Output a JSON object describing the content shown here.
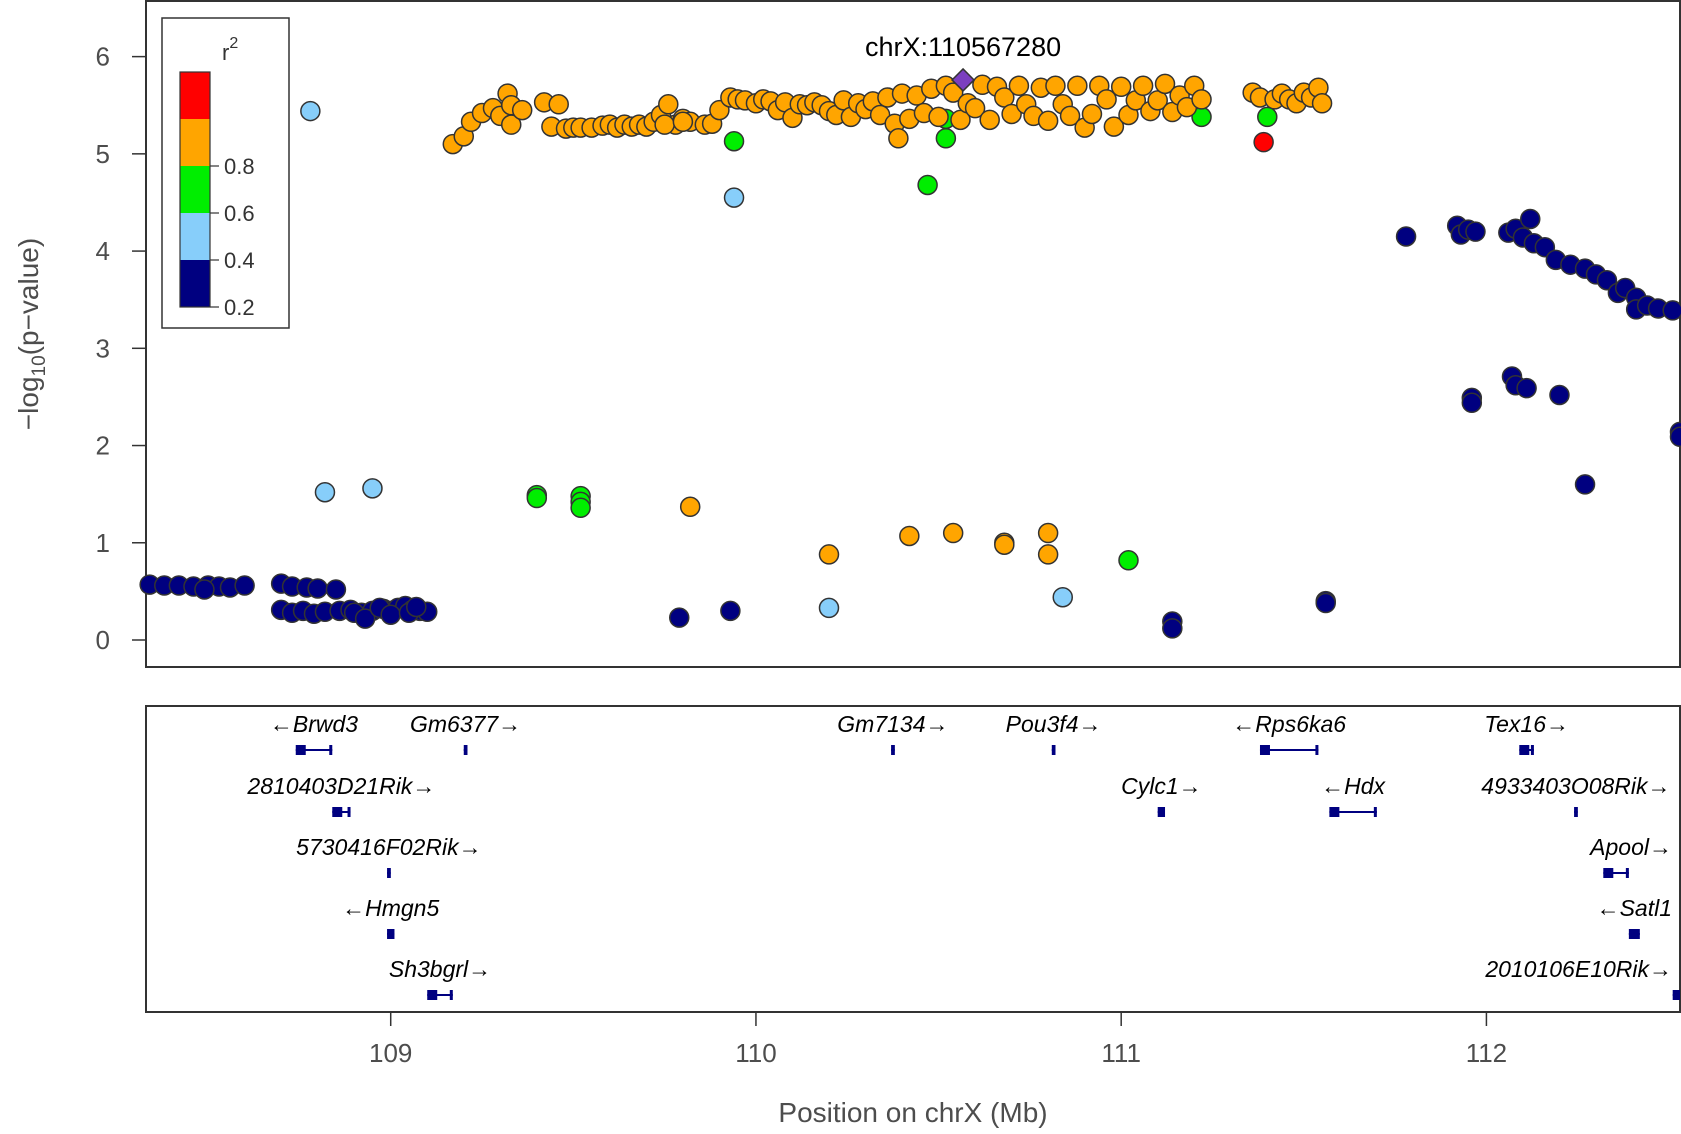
{
  "chart_data": {
    "type": "scatter",
    "xlabel": "Position on chrX (Mb)",
    "ylabel": "−log10(p−value)",
    "xlim": [
      108.33,
      112.53
    ],
    "ylim": [
      0,
      6.5
    ],
    "x_ticks": [
      109,
      110,
      111,
      112
    ],
    "y_ticks": [
      0,
      1,
      2,
      3,
      4,
      5,
      6
    ],
    "lead_snp": {
      "label": "chrX:110567280",
      "x": 110.567,
      "y": 5.76,
      "color": "#7b3fbf"
    },
    "legend": {
      "title": "r2",
      "bins": [
        {
          "color": "#ff0000",
          "label": ""
        },
        {
          "color": "#ffa500",
          "label": "0.8"
        },
        {
          "color": "#00ee00",
          "label": "0.6"
        },
        {
          "color": "#87cefa",
          "label": "0.4"
        },
        {
          "color": "#000080",
          "label": "0.2"
        }
      ]
    },
    "colors": {
      "red": "#ff0000",
      "orange": "#ffa500",
      "green": "#00ee00",
      "light_blue": "#87cefa",
      "navy": "#000080"
    },
    "points": [
      {
        "color": "navy",
        "points": [
          [
            108.34,
            0.57
          ],
          [
            108.38,
            0.56
          ],
          [
            108.42,
            0.56
          ],
          [
            108.46,
            0.55
          ],
          [
            108.5,
            0.56
          ],
          [
            108.53,
            0.55
          ],
          [
            108.56,
            0.54
          ],
          [
            108.6,
            0.56
          ],
          [
            108.49,
            0.52
          ],
          [
            108.7,
            0.58
          ],
          [
            108.73,
            0.55
          ],
          [
            108.77,
            0.54
          ],
          [
            108.8,
            0.53
          ],
          [
            108.7,
            0.31
          ],
          [
            108.73,
            0.28
          ],
          [
            108.76,
            0.3
          ],
          [
            108.79,
            0.27
          ],
          [
            108.82,
            0.29
          ],
          [
            108.86,
            0.3
          ],
          [
            108.89,
            0.31
          ],
          [
            108.92,
            0.28
          ],
          [
            108.95,
            0.3
          ],
          [
            108.98,
            0.32
          ],
          [
            109.0,
            0.3
          ],
          [
            109.02,
            0.33
          ],
          [
            109.04,
            0.35
          ],
          [
            109.06,
            0.31
          ],
          [
            109.08,
            0.3
          ],
          [
            109.1,
            0.29
          ],
          [
            108.85,
            0.52
          ],
          [
            108.9,
            0.28
          ],
          [
            108.93,
            0.22
          ],
          [
            108.97,
            0.33
          ],
          [
            109.0,
            0.26
          ],
          [
            109.05,
            0.28
          ],
          [
            109.07,
            0.34
          ],
          [
            109.79,
            0.23
          ],
          [
            109.93,
            0.3
          ],
          [
            111.14,
            0.19
          ],
          [
            111.14,
            0.12
          ],
          [
            111.56,
            0.4
          ],
          [
            111.56,
            0.38
          ],
          [
            111.78,
            4.15
          ],
          [
            111.92,
            4.26
          ],
          [
            111.93,
            4.17
          ],
          [
            111.95,
            4.22
          ],
          [
            111.97,
            4.2
          ],
          [
            112.06,
            4.19
          ],
          [
            112.08,
            4.23
          ],
          [
            112.1,
            4.14
          ],
          [
            112.12,
            4.33
          ],
          [
            112.13,
            4.08
          ],
          [
            112.16,
            4.04
          ],
          [
            112.19,
            3.91
          ],
          [
            112.23,
            3.86
          ],
          [
            112.27,
            3.82
          ],
          [
            112.3,
            3.76
          ],
          [
            112.33,
            3.7
          ],
          [
            112.36,
            3.57
          ],
          [
            112.38,
            3.62
          ],
          [
            112.41,
            3.52
          ],
          [
            112.41,
            3.4
          ],
          [
            112.44,
            3.44
          ],
          [
            112.47,
            3.41
          ],
          [
            112.51,
            3.39
          ],
          [
            112.07,
            2.71
          ],
          [
            112.08,
            2.62
          ],
          [
            112.11,
            2.59
          ],
          [
            112.2,
            2.52
          ],
          [
            111.96,
            2.49
          ],
          [
            111.96,
            2.44
          ],
          [
            112.27,
            1.6
          ],
          [
            112.53,
            2.14
          ],
          [
            112.53,
            2.09
          ]
        ]
      },
      {
        "color": "light_blue",
        "points": [
          [
            108.78,
            5.44
          ],
          [
            108.82,
            1.52
          ],
          [
            108.95,
            1.56
          ],
          [
            109.94,
            4.55
          ],
          [
            110.2,
            0.33
          ],
          [
            110.84,
            0.44
          ]
        ]
      },
      {
        "color": "green",
        "points": [
          [
            109.4,
            1.49
          ],
          [
            109.4,
            1.46
          ],
          [
            109.52,
            1.48
          ],
          [
            109.52,
            1.42
          ],
          [
            109.52,
            1.36
          ],
          [
            109.94,
            5.13
          ],
          [
            110.47,
            4.68
          ],
          [
            110.52,
            5.36
          ],
          [
            110.52,
            5.16
          ],
          [
            111.02,
            0.82
          ],
          [
            111.22,
            5.38
          ],
          [
            111.4,
            5.38
          ]
        ]
      },
      {
        "color": "orange",
        "points": [
          [
            109.82,
            1.37
          ],
          [
            110.2,
            0.88
          ],
          [
            110.42,
            1.07
          ],
          [
            110.54,
            1.1
          ],
          [
            110.68,
            1.0
          ],
          [
            110.68,
            0.98
          ],
          [
            110.8,
            1.1
          ],
          [
            110.8,
            0.88
          ],
          [
            109.17,
            5.1
          ],
          [
            109.2,
            5.18
          ],
          [
            109.22,
            5.33
          ],
          [
            109.25,
            5.42
          ],
          [
            109.28,
            5.47
          ],
          [
            109.3,
            5.39
          ],
          [
            109.32,
            5.62
          ],
          [
            109.33,
            5.5
          ],
          [
            109.33,
            5.3
          ],
          [
            109.36,
            5.45
          ],
          [
            109.42,
            5.53
          ],
          [
            109.46,
            5.51
          ],
          [
            109.44,
            5.28
          ],
          [
            109.48,
            5.26
          ],
          [
            109.5,
            5.27
          ],
          [
            109.52,
            5.27
          ],
          [
            109.55,
            5.27
          ],
          [
            109.58,
            5.29
          ],
          [
            109.6,
            5.3
          ],
          [
            109.62,
            5.27
          ],
          [
            109.64,
            5.3
          ],
          [
            109.66,
            5.28
          ],
          [
            109.68,
            5.3
          ],
          [
            109.7,
            5.28
          ],
          [
            109.72,
            5.33
          ],
          [
            109.74,
            5.4
          ],
          [
            109.76,
            5.51
          ],
          [
            109.78,
            5.3
          ],
          [
            109.8,
            5.36
          ],
          [
            109.82,
            5.33
          ],
          [
            109.86,
            5.3
          ],
          [
            109.88,
            5.31
          ],
          [
            109.9,
            5.45
          ],
          [
            109.93,
            5.58
          ],
          [
            109.95,
            5.56
          ],
          [
            109.97,
            5.55
          ],
          [
            110.0,
            5.52
          ],
          [
            110.02,
            5.56
          ],
          [
            110.04,
            5.54
          ],
          [
            110.06,
            5.45
          ],
          [
            110.08,
            5.53
          ],
          [
            110.1,
            5.37
          ],
          [
            110.12,
            5.51
          ],
          [
            110.14,
            5.5
          ],
          [
            110.16,
            5.53
          ],
          [
            110.18,
            5.5
          ],
          [
            110.2,
            5.44
          ],
          [
            110.22,
            5.4
          ],
          [
            110.24,
            5.55
          ],
          [
            110.26,
            5.38
          ],
          [
            110.28,
            5.52
          ],
          [
            110.3,
            5.46
          ],
          [
            110.32,
            5.54
          ],
          [
            110.34,
            5.4
          ],
          [
            110.36,
            5.58
          ],
          [
            110.38,
            5.31
          ],
          [
            110.4,
            5.62
          ],
          [
            110.42,
            5.36
          ],
          [
            110.44,
            5.6
          ],
          [
            110.46,
            5.42
          ],
          [
            110.48,
            5.67
          ],
          [
            110.5,
            5.38
          ],
          [
            110.52,
            5.7
          ],
          [
            110.54,
            5.63
          ],
          [
            110.56,
            5.35
          ],
          [
            110.58,
            5.52
          ],
          [
            110.6,
            5.47
          ],
          [
            110.62,
            5.71
          ],
          [
            110.64,
            5.35
          ],
          [
            110.66,
            5.69
          ],
          [
            110.68,
            5.58
          ],
          [
            110.7,
            5.41
          ],
          [
            110.72,
            5.7
          ],
          [
            110.74,
            5.51
          ],
          [
            110.76,
            5.39
          ],
          [
            110.78,
            5.68
          ],
          [
            110.8,
            5.34
          ],
          [
            110.82,
            5.7
          ],
          [
            110.84,
            5.51
          ],
          [
            110.86,
            5.39
          ],
          [
            110.88,
            5.7
          ],
          [
            110.9,
            5.27
          ],
          [
            110.92,
            5.41
          ],
          [
            110.94,
            5.7
          ],
          [
            110.96,
            5.56
          ],
          [
            110.98,
            5.28
          ],
          [
            111.0,
            5.69
          ],
          [
            111.02,
            5.4
          ],
          [
            111.04,
            5.55
          ],
          [
            111.06,
            5.7
          ],
          [
            111.08,
            5.44
          ],
          [
            111.1,
            5.55
          ],
          [
            111.12,
            5.72
          ],
          [
            111.14,
            5.43
          ],
          [
            111.16,
            5.6
          ],
          [
            111.18,
            5.48
          ],
          [
            111.2,
            5.7
          ],
          [
            111.22,
            5.56
          ],
          [
            111.36,
            5.63
          ],
          [
            111.38,
            5.58
          ],
          [
            111.42,
            5.56
          ],
          [
            111.44,
            5.62
          ],
          [
            111.46,
            5.56
          ],
          [
            111.48,
            5.52
          ],
          [
            111.5,
            5.63
          ],
          [
            111.52,
            5.58
          ],
          [
            111.54,
            5.68
          ],
          [
            111.55,
            5.52
          ],
          [
            110.39,
            5.16
          ],
          [
            109.75,
            5.3
          ],
          [
            109.8,
            5.33
          ]
        ]
      },
      {
        "color": "red",
        "points": [
          [
            111.39,
            5.12
          ]
        ]
      }
    ],
    "genes": [
      {
        "name": "Brwd3",
        "dir": "left",
        "start": 108.74,
        "end": 108.84,
        "row": 0
      },
      {
        "name": "Gm6377",
        "dir": "right",
        "start": 109.2,
        "end": 109.21,
        "row": 0
      },
      {
        "name": "Gm7134",
        "dir": "right",
        "start": 110.37,
        "end": 110.38,
        "row": 0
      },
      {
        "name": "Pou3f4",
        "dir": "right",
        "start": 110.81,
        "end": 110.82,
        "row": 0
      },
      {
        "name": "Rps6ka6",
        "dir": "left",
        "start": 111.38,
        "end": 111.54,
        "row": 0
      },
      {
        "name": "Tex16",
        "dir": "right",
        "start": 112.09,
        "end": 112.13,
        "row": 0
      },
      {
        "name": "2810403D21Rik",
        "dir": "right",
        "start": 108.84,
        "end": 108.89,
        "row": 1
      },
      {
        "name": "Cylc1",
        "dir": "right",
        "start": 111.1,
        "end": 111.12,
        "row": 1
      },
      {
        "name": "Hdx",
        "dir": "left",
        "start": 111.57,
        "end": 111.7,
        "row": 1
      },
      {
        "name": "4933403O08Rik",
        "dir": "right",
        "start": 112.24,
        "end": 112.25,
        "row": 1
      },
      {
        "name": "5730416F02Rik",
        "dir": "right",
        "start": 108.99,
        "end": 109.0,
        "row": 2
      },
      {
        "name": "Apool",
        "dir": "right",
        "start": 112.32,
        "end": 112.39,
        "row": 2
      },
      {
        "name": "Hmgn5",
        "dir": "left",
        "start": 108.99,
        "end": 109.01,
        "row": 3
      },
      {
        "name": "Satl1",
        "dir": "left",
        "start": 112.39,
        "end": 112.42,
        "row": 3
      },
      {
        "name": "Sh3bgrl",
        "dir": "right",
        "start": 109.1,
        "end": 109.17,
        "row": 4
      },
      {
        "name": "2010106E10Rik",
        "dir": "right",
        "start": 112.51,
        "end": 112.53,
        "row": 4
      }
    ]
  }
}
